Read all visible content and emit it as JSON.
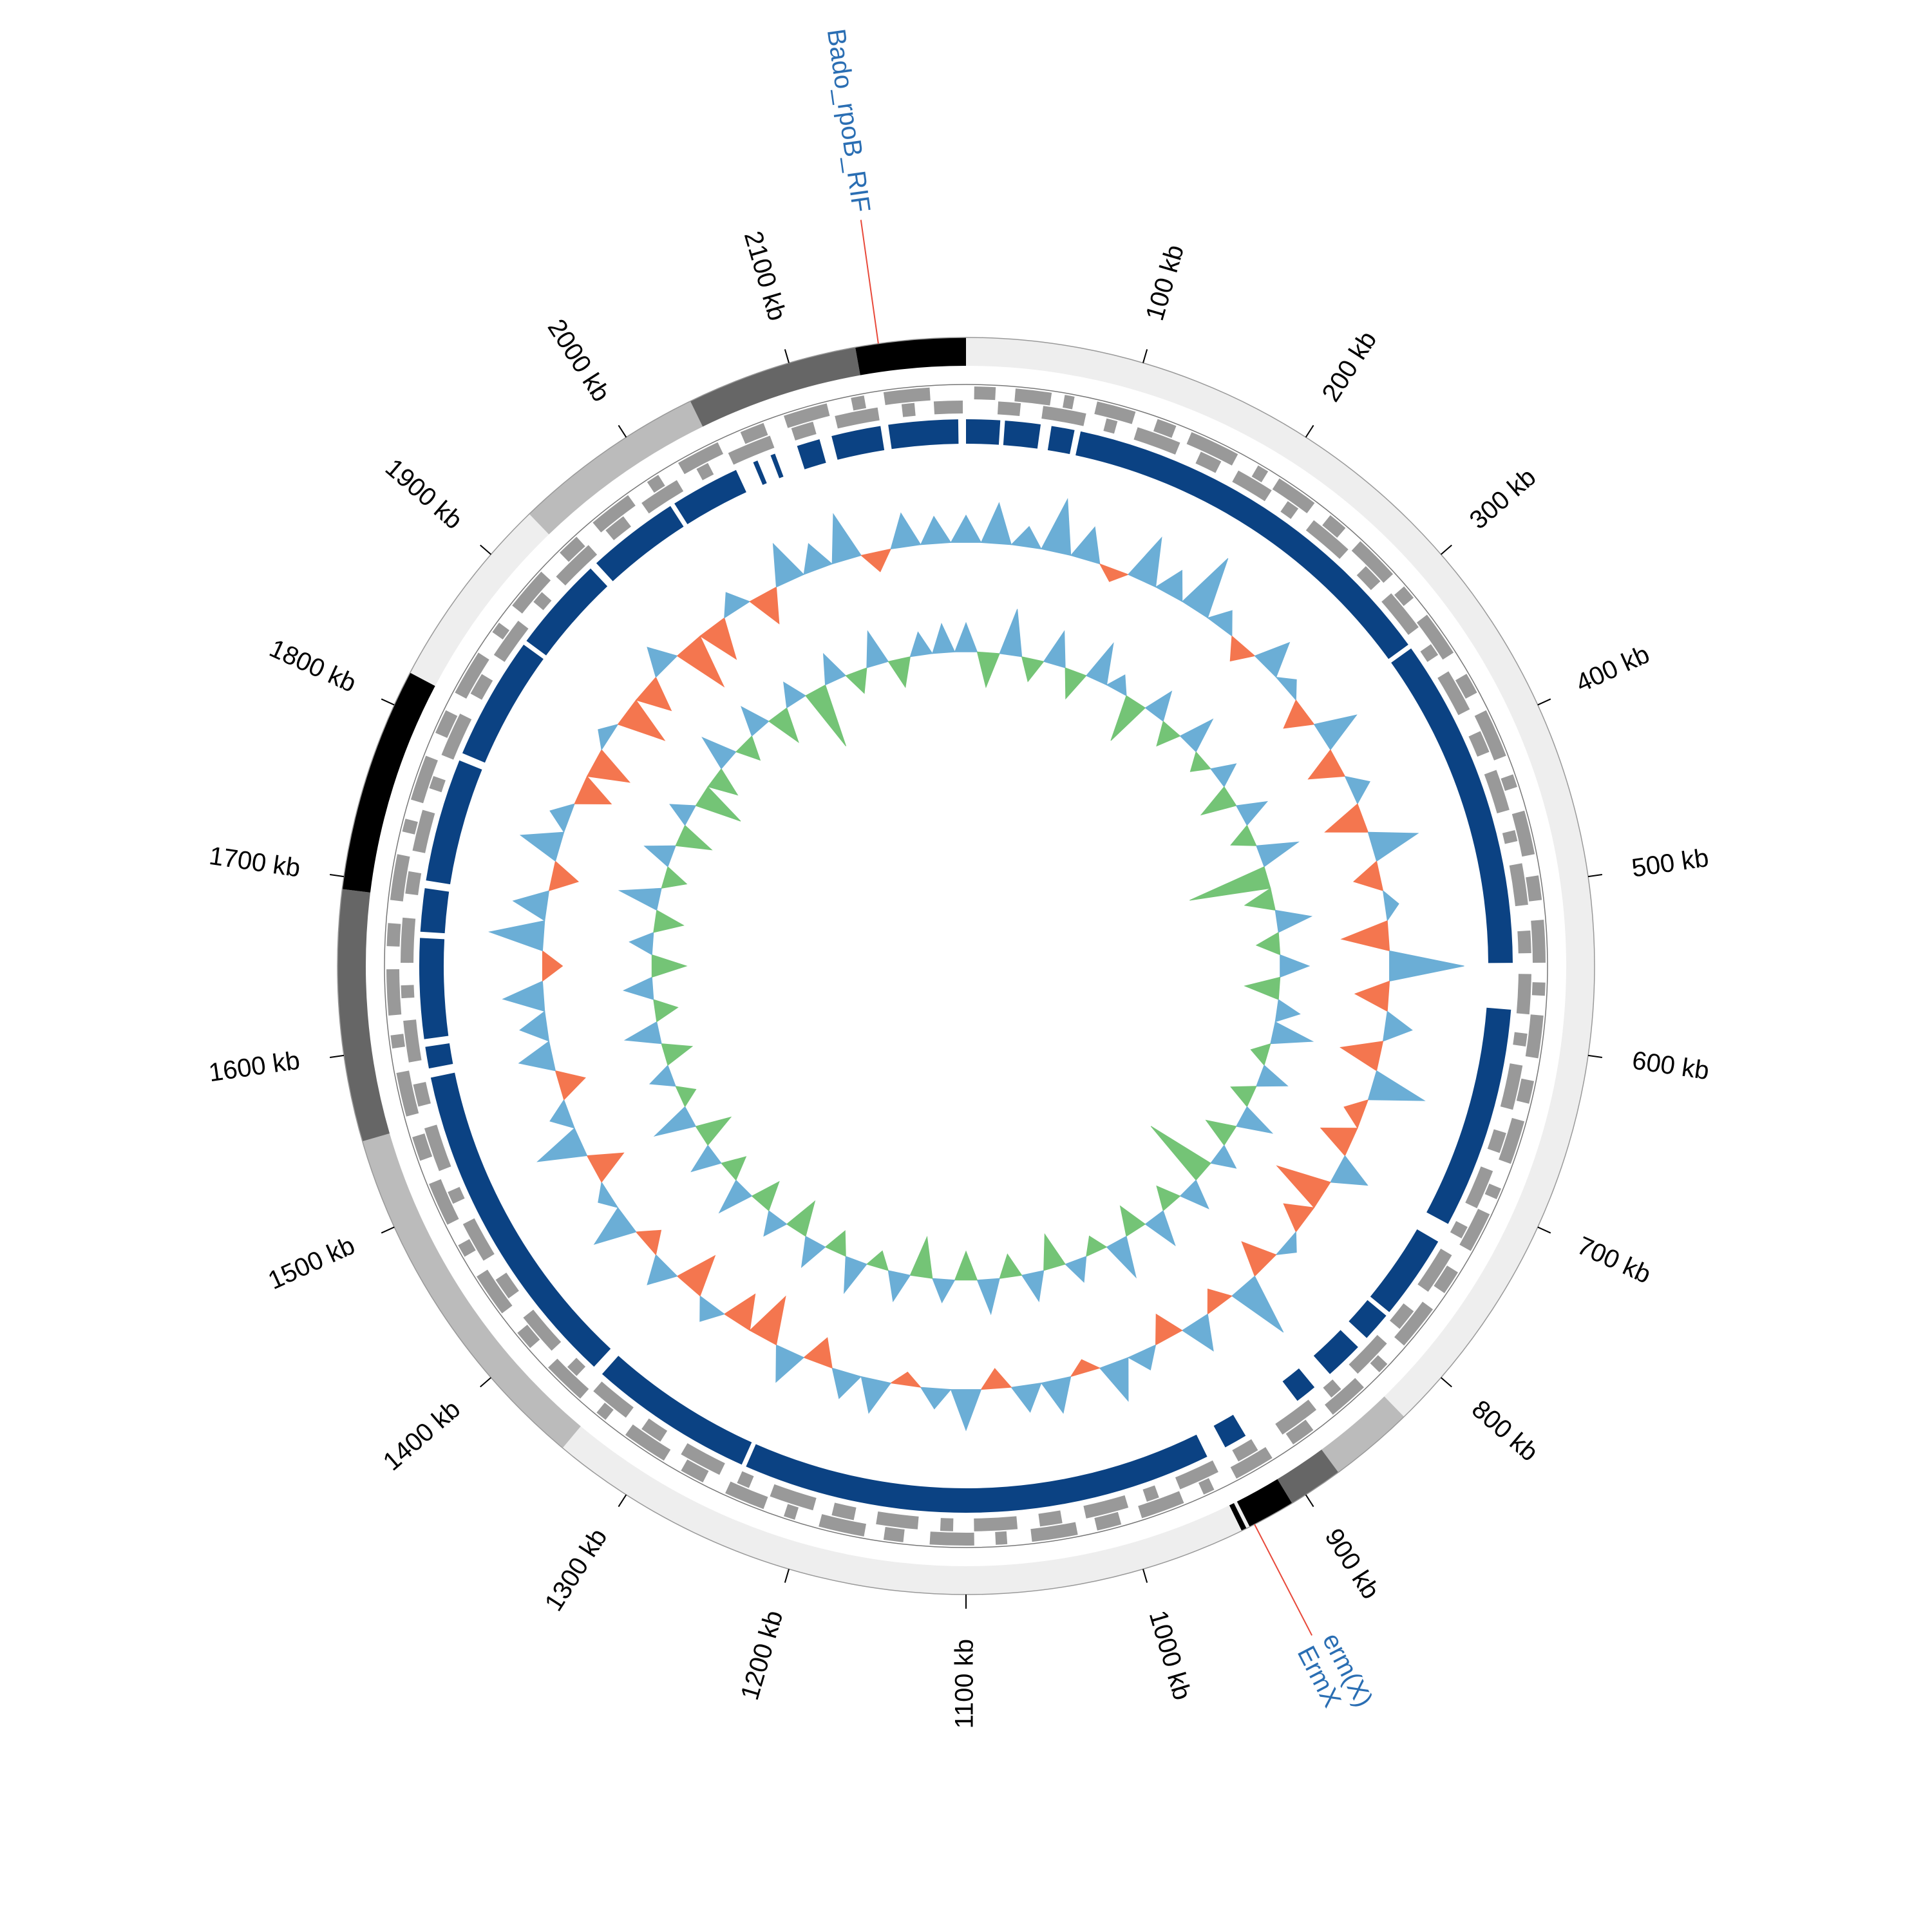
{
  "chart_data": {
    "type": "genome-circle",
    "xlim": [
      0,
      2200
    ],
    "xticks": [
      {
        "value": 100,
        "label": "100 kb"
      },
      {
        "value": 200,
        "label": "200 kb"
      },
      {
        "value": 300,
        "label": "300 kb"
      },
      {
        "value": 400,
        "label": "400 kb"
      },
      {
        "value": 500,
        "label": "500 kb"
      },
      {
        "value": 600,
        "label": "600 kb"
      },
      {
        "value": 700,
        "label": "700 kb"
      },
      {
        "value": 800,
        "label": "800 kb"
      },
      {
        "value": 900,
        "label": "900 kb"
      },
      {
        "value": 1000,
        "label": "1000 kb"
      },
      {
        "value": 1100,
        "label": "1100 kb"
      },
      {
        "value": 1200,
        "label": "1200 kb"
      },
      {
        "value": 1300,
        "label": "1300 kb"
      },
      {
        "value": 1400,
        "label": "1400 kb"
      },
      {
        "value": 1500,
        "label": "1500 kb"
      },
      {
        "value": 1600,
        "label": "1600 kb"
      },
      {
        "value": 1700,
        "label": "1700 kb"
      },
      {
        "value": 1800,
        "label": "1800 kb"
      },
      {
        "value": 1900,
        "label": "1900 kb"
      },
      {
        "value": 2000,
        "label": "2000 kb"
      },
      {
        "value": 2100,
        "label": "2100 kb"
      }
    ],
    "contigs": [
      {
        "start": 0,
        "end": 830,
        "color": "#eeeeee"
      },
      {
        "start": 830,
        "end": 878,
        "color": "#bbbbbb"
      },
      {
        "start": 878,
        "end": 909,
        "color": "#666666"
      },
      {
        "start": 909,
        "end": 936,
        "color": "#000000"
      },
      {
        "start": 936,
        "end": 938,
        "color": "#eeeeee"
      },
      {
        "start": 938,
        "end": 941,
        "color": "#000000"
      },
      {
        "start": 941,
        "end": 1344,
        "color": "#eeeeee"
      },
      {
        "start": 1344,
        "end": 1551,
        "color": "#bbbbbb"
      },
      {
        "start": 1551,
        "end": 1693,
        "color": "#666666"
      },
      {
        "start": 1693,
        "end": 1820,
        "color": "#000000"
      },
      {
        "start": 1820,
        "end": 1931,
        "color": "#eeeeee"
      },
      {
        "start": 1931,
        "end": 2041,
        "color": "#bbbbbb"
      },
      {
        "start": 2041,
        "end": 2138,
        "color": "#666666"
      },
      {
        "start": 2138,
        "end": 2200,
        "color": "#000000"
      }
    ],
    "gene_color": "#999999",
    "genes_forward": [
      [
        5,
        18
      ],
      [
        30,
        52
      ],
      [
        60,
        66
      ],
      [
        80,
        104
      ],
      [
        118,
        130
      ],
      [
        140,
        171
      ],
      [
        185,
        192
      ],
      [
        200,
        226
      ],
      [
        238,
        250
      ],
      [
        262,
        290
      ],
      [
        300,
        309
      ],
      [
        322,
        350
      ],
      [
        365,
        378
      ],
      [
        390,
        420
      ],
      [
        432,
        440
      ],
      [
        455,
        482
      ],
      [
        495,
        510
      ],
      [
        522,
        548
      ],
      [
        560,
        568
      ],
      [
        580,
        606
      ],
      [
        620,
        634
      ],
      [
        645,
        672
      ],
      [
        688,
        695
      ],
      [
        705,
        730
      ],
      [
        745,
        760
      ],
      [
        772,
        800
      ],
      [
        815,
        822
      ],
      [
        835,
        860
      ],
      [
        875,
        890
      ],
      [
        905,
        930
      ],
      [
        945,
        952
      ],
      [
        965,
        992
      ],
      [
        1005,
        1020
      ],
      [
        1032,
        1060
      ],
      [
        1075,
        1082
      ],
      [
        1095,
        1122
      ],
      [
        1138,
        1150
      ],
      [
        1162,
        1190
      ],
      [
        1205,
        1212
      ],
      [
        1225,
        1250
      ],
      [
        1265,
        1280
      ],
      [
        1292,
        1320
      ],
      [
        1335,
        1342
      ],
      [
        1355,
        1382
      ],
      [
        1398,
        1410
      ],
      [
        1425,
        1452
      ],
      [
        1466,
        1474
      ],
      [
        1488,
        1515
      ],
      [
        1530,
        1545
      ],
      [
        1558,
        1585
      ],
      [
        1600,
        1608
      ],
      [
        1620,
        1648
      ],
      [
        1662,
        1676
      ],
      [
        1690,
        1718
      ],
      [
        1732,
        1740
      ],
      [
        1752,
        1780
      ],
      [
        1795,
        1810
      ],
      [
        1822,
        1850
      ],
      [
        1865,
        1872
      ],
      [
        1885,
        1912
      ],
      [
        1928,
        1942
      ],
      [
        1955,
        1982
      ],
      [
        1996,
        2004
      ],
      [
        2018,
        2045
      ],
      [
        2060,
        2075
      ],
      [
        2088,
        2115
      ],
      [
        2130,
        2138
      ],
      [
        2150,
        2178
      ]
    ],
    "genes_reverse": [
      [
        20,
        34
      ],
      [
        48,
        75
      ],
      [
        88,
        95
      ],
      [
        108,
        136
      ],
      [
        150,
        164
      ],
      [
        176,
        200
      ],
      [
        212,
        220
      ],
      [
        232,
        260
      ],
      [
        275,
        288
      ],
      [
        298,
        325
      ],
      [
        338,
        346
      ],
      [
        358,
        385
      ],
      [
        400,
        414
      ],
      [
        426,
        452
      ],
      [
        465,
        472
      ],
      [
        486,
        512
      ],
      [
        528,
        542
      ],
      [
        555,
        580
      ],
      [
        592,
        600
      ],
      [
        612,
        640
      ],
      [
        655,
        668
      ],
      [
        680,
        705
      ],
      [
        718,
        726
      ],
      [
        738,
        765
      ],
      [
        780,
        794
      ],
      [
        806,
        832
      ],
      [
        846,
        854
      ],
      [
        866,
        892
      ],
      [
        910,
        924
      ],
      [
        938,
        964
      ],
      [
        978,
        986
      ],
      [
        998,
        1025
      ],
      [
        1040,
        1054
      ],
      [
        1068,
        1095
      ],
      [
        1108,
        1116
      ],
      [
        1130,
        1156
      ],
      [
        1170,
        1184
      ],
      [
        1196,
        1224
      ],
      [
        1238,
        1246
      ],
      [
        1258,
        1285
      ],
      [
        1300,
        1314
      ],
      [
        1326,
        1352
      ],
      [
        1366,
        1374
      ],
      [
        1388,
        1415
      ],
      [
        1430,
        1444
      ],
      [
        1458,
        1484
      ],
      [
        1498,
        1506
      ],
      [
        1520,
        1548
      ],
      [
        1562,
        1576
      ],
      [
        1590,
        1616
      ],
      [
        1630,
        1638
      ],
      [
        1652,
        1680
      ],
      [
        1695,
        1709
      ],
      [
        1722,
        1748
      ],
      [
        1762,
        1770
      ],
      [
        1784,
        1812
      ],
      [
        1826,
        1840
      ],
      [
        1854,
        1880
      ],
      [
        1895,
        1903
      ],
      [
        1916,
        1944
      ],
      [
        1958,
        1972
      ],
      [
        1986,
        2012
      ],
      [
        2026,
        2034
      ],
      [
        2048,
        2076
      ],
      [
        2090,
        2104
      ],
      [
        2118,
        2145
      ],
      [
        2160,
        2168
      ],
      [
        2180,
        2198
      ]
    ],
    "block_color": "#0b4283",
    "blocks": [
      [
        0,
        22
      ],
      [
        25,
        48
      ],
      [
        55,
        70
      ],
      [
        74,
        330
      ],
      [
        333,
        548
      ],
      [
        578,
        722
      ],
      [
        735,
        790
      ],
      [
        793,
        812
      ],
      [
        820,
        845
      ],
      [
        858,
        872
      ],
      [
        912,
        927
      ],
      [
        940,
        1245
      ],
      [
        1248,
        1355
      ],
      [
        1362,
        1578
      ],
      [
        1584,
        1598
      ],
      [
        1603,
        1668
      ],
      [
        1672,
        1700
      ],
      [
        1705,
        1785
      ],
      [
        1790,
        1870
      ],
      [
        1873,
        1935
      ],
      [
        1940,
        2000
      ],
      [
        2003,
        2048
      ],
      [
        2060,
        2063
      ],
      [
        2072,
        2075
      ],
      [
        2090,
        2105
      ],
      [
        2113,
        2145
      ],
      [
        2150,
        2195
      ]
    ],
    "x": [
      0,
      25,
      50,
      75,
      100,
      125,
      150,
      175,
      200,
      225,
      250,
      275,
      300,
      325,
      350,
      375,
      400,
      425,
      450,
      475,
      500,
      525,
      550,
      575,
      600,
      625,
      650,
      675,
      700,
      725,
      750,
      775,
      800,
      825,
      850,
      875,
      900,
      925,
      950,
      975,
      1000,
      1025,
      1050,
      1075,
      1100,
      1125,
      1150,
      1175,
      1200,
      1225,
      1250,
      1275,
      1300,
      1325,
      1350,
      1375,
      1400,
      1425,
      1450,
      1475,
      1500,
      1525,
      1550,
      1575,
      1600,
      1625,
      1650,
      1675,
      1700,
      1725,
      1750,
      1775,
      1800,
      1825,
      1850,
      1875,
      1900,
      1925,
      1950,
      1975,
      2000,
      2025,
      2050,
      2075,
      2100,
      2125,
      2150,
      2175
    ],
    "gc_content": {
      "positive_color": "#6baed6",
      "negative_color": "#f4764f",
      "values": [
        0.04,
        0.06,
        0.03,
        0.08,
        0.05,
        -0.02,
        0.07,
        0.04,
        0.09,
        0.03,
        -0.03,
        0.05,
        0.02,
        -0.04,
        0.06,
        -0.05,
        0.03,
        -0.06,
        0.07,
        -0.04,
        0.02,
        -0.07,
        0.11,
        -0.05,
        0.04,
        -0.06,
        0.08,
        -0.03,
        -0.05,
        0.05,
        -0.08,
        -0.04,
        0.02,
        -0.05,
        0.09,
        -0.03,
        0.05,
        -0.04,
        0.03,
        0.06,
        -0.02,
        0.05,
        0.04,
        -0.03,
        0.06,
        0.03,
        -0.02,
        0.05,
        0.04,
        -0.04,
        0.05,
        -0.07,
        -0.05,
        0.03,
        -0.06,
        0.04,
        -0.03,
        0.06,
        0.02,
        -0.05,
        0.07,
        0.03,
        -0.04,
        0.05,
        0.04,
        0.06,
        -0.03,
        0.08,
        0.05,
        -0.04,
        0.06,
        0.03,
        -0.05,
        -0.06,
        0.02,
        -0.07,
        -0.05,
        0.04,
        -0.08,
        -0.06,
        0.03,
        -0.05,
        0.06,
        0.04,
        0.07,
        -0.03,
        0.05,
        0.04
      ]
    },
    "gc_skew": {
      "positive_color": "#6baed6",
      "negative_color": "#74c476",
      "values": [
        0.05,
        -0.06,
        0.08,
        -0.04,
        0.06,
        -0.05,
        0.07,
        0.03,
        -0.08,
        0.05,
        -0.04,
        0.06,
        -0.03,
        0.04,
        -0.06,
        0.05,
        -0.04,
        0.07,
        -0.14,
        -0.05,
        0.06,
        -0.04,
        0.05,
        -0.06,
        0.04,
        0.07,
        -0.03,
        0.05,
        -0.04,
        0.06,
        -0.05,
        0.04,
        -0.12,
        0.05,
        -0.04,
        0.06,
        -0.05,
        0.07,
        -0.03,
        0.04,
        -0.06,
        0.05,
        -0.04,
        0.06,
        -0.05,
        0.04,
        -0.07,
        0.05,
        -0.03,
        0.06,
        -0.04,
        0.05,
        -0.06,
        0.04,
        -0.05,
        0.06,
        -0.04,
        0.05,
        -0.06,
        0.07,
        -0.03,
        0.04,
        -0.05,
        0.06,
        -0.04,
        0.05,
        -0.06,
        0.04,
        -0.05,
        0.07,
        -0.04,
        0.05,
        -0.06,
        0.04,
        -0.08,
        -0.05,
        0.06,
        -0.04,
        0.05,
        -0.06,
        0.04,
        -0.11,
        0.05,
        -0.04,
        0.06,
        -0.05,
        0.04,
        0.05
      ]
    },
    "annotation_line_color": "#e8493a",
    "annotation_label_color": "#2a6eb3",
    "annotations": [
      {
        "position": 2151,
        "labels": [
          "Bado_rpoB_RIF"
        ]
      },
      {
        "position": 933,
        "labels": [
          "erm(X)",
          "ErmX"
        ]
      }
    ]
  }
}
